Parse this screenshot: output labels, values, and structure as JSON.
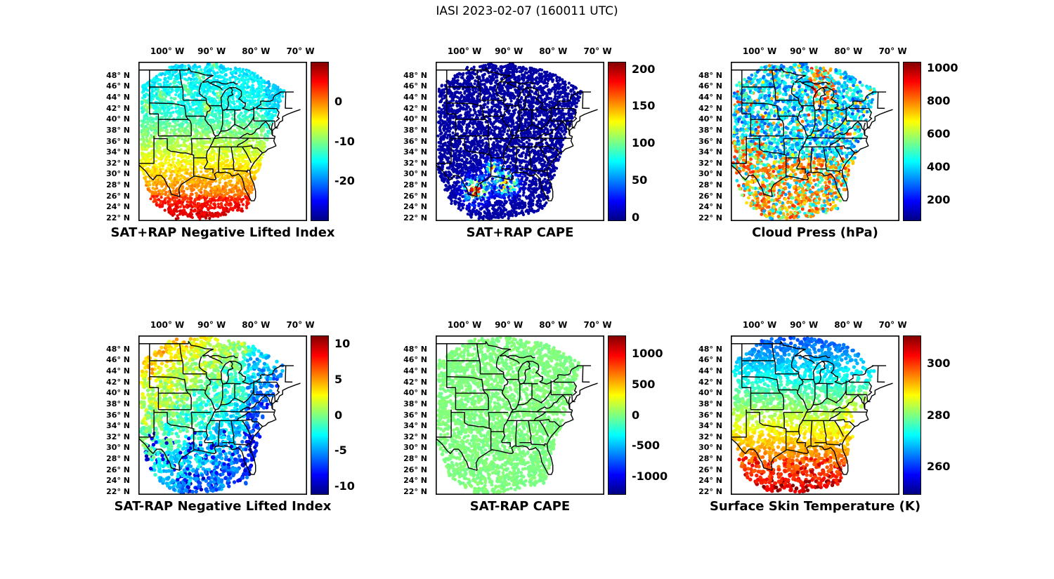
{
  "figure": {
    "title": "IASI 2023-02-07 (160011 UTC)",
    "instrument": "IASI",
    "date": "2023-02-07",
    "time_utc": "160011 UTC"
  },
  "map": {
    "lon_range": [
      -106.5,
      -68.5
    ],
    "lat_range": [
      21.5,
      50.5
    ],
    "lon_ticks": [
      {
        "value": -100,
        "label": "100° W"
      },
      {
        "value": -90,
        "label": "90° W"
      },
      {
        "value": -80,
        "label": "80° W"
      },
      {
        "value": -70,
        "label": "70° W"
      }
    ],
    "lat_ticks": [
      {
        "value": 48,
        "label": "48° N"
      },
      {
        "value": 46,
        "label": "46° N"
      },
      {
        "value": 44,
        "label": "44° N"
      },
      {
        "value": 42,
        "label": "42° N"
      },
      {
        "value": 40,
        "label": "40° N"
      },
      {
        "value": 38,
        "label": "38° N"
      },
      {
        "value": 36,
        "label": "36° N"
      },
      {
        "value": 34,
        "label": "34° N"
      },
      {
        "value": 32,
        "label": "32° N"
      },
      {
        "value": 30,
        "label": "30° N"
      },
      {
        "value": 28,
        "label": "28° N"
      },
      {
        "value": 26,
        "label": "26° N"
      },
      {
        "value": 24,
        "label": "24° N"
      },
      {
        "value": 22,
        "label": "22° N"
      }
    ]
  },
  "panels": [
    {
      "title": "SAT+RAP Negative Lifted Index",
      "field": "nli_plus",
      "row": 0,
      "col": 0,
      "colorbar": {
        "min": -30,
        "max": 10,
        "ticks": [
          {
            "value": 0,
            "label": "0"
          },
          {
            "value": -10,
            "label": "-10"
          },
          {
            "value": -20,
            "label": "-20"
          }
        ]
      },
      "style": {
        "num_points": 4000,
        "point_radius": 2.1
      }
    },
    {
      "title": "SAT+RAP CAPE",
      "field": "cape_plus",
      "row": 0,
      "col": 1,
      "colorbar": {
        "min": -5,
        "max": 210,
        "ticks": [
          {
            "value": 200,
            "label": "200"
          },
          {
            "value": 150,
            "label": "150"
          },
          {
            "value": 100,
            "label": "100"
          },
          {
            "value": 50,
            "label": "50"
          },
          {
            "value": 0,
            "label": "0"
          }
        ]
      },
      "style": {
        "num_points": 4000,
        "point_radius": 2.1
      }
    },
    {
      "title": "Cloud Press (hPa)",
      "field": "cloud_press",
      "row": 0,
      "col": 2,
      "colorbar": {
        "min": 70,
        "max": 1040,
        "ticks": [
          {
            "value": 1000,
            "label": "1000"
          },
          {
            "value": 800,
            "label": "800"
          },
          {
            "value": 600,
            "label": "600"
          },
          {
            "value": 400,
            "label": "400"
          },
          {
            "value": 200,
            "label": "200"
          }
        ]
      },
      "style": {
        "num_points": 2600,
        "point_radius": 2.4
      }
    },
    {
      "title": "SAT-RAP Negative Lifted Index",
      "field": "nli_diff",
      "row": 1,
      "col": 0,
      "colorbar": {
        "min": -11.2,
        "max": 11.2,
        "ticks": [
          {
            "value": 10,
            "label": "10"
          },
          {
            "value": 5,
            "label": "5"
          },
          {
            "value": 0,
            "label": "0"
          },
          {
            "value": -5,
            "label": "-5"
          },
          {
            "value": -10,
            "label": "-10"
          }
        ]
      },
      "style": {
        "num_points": 2100,
        "point_radius": 2.7
      }
    },
    {
      "title": "SAT-RAP CAPE",
      "field": "cape_diff",
      "row": 1,
      "col": 1,
      "colorbar": {
        "min": -1300,
        "max": 1300,
        "ticks": [
          {
            "value": 1000,
            "label": "1000"
          },
          {
            "value": 500,
            "label": "500"
          },
          {
            "value": 0,
            "label": "0"
          },
          {
            "value": -500,
            "label": "-500"
          },
          {
            "value": -1000,
            "label": "-1000"
          }
        ]
      },
      "style": {
        "num_points": 3000,
        "point_radius": 2.4
      }
    },
    {
      "title": "Surface Skin Temperature (K)",
      "field": "skin_temp",
      "row": 1,
      "col": 2,
      "colorbar": {
        "min": 249,
        "max": 311,
        "ticks": [
          {
            "value": 300,
            "label": "300"
          },
          {
            "value": 280,
            "label": "280"
          },
          {
            "value": 260,
            "label": "260"
          }
        ]
      },
      "style": {
        "num_points": 2100,
        "point_radius": 2.7
      }
    }
  ],
  "chart_data": [
    {
      "type": "scatter",
      "title": "SAT+RAP Negative Lifted Index",
      "colormap": "jet",
      "value_range": [
        -30,
        10
      ],
      "colorbar_ticks": [
        0,
        -10,
        -20
      ],
      "lon_range_deg": [
        -106.5,
        -68.5
      ],
      "lat_range_deg": [
        21.5,
        50.5
      ],
      "lon_tick_labels": [
        "100° W",
        "90° W",
        "80° W",
        "70° W"
      ],
      "lat_tick_labels": [
        "48° N",
        "46° N",
        "44° N",
        "42° N",
        "40° N",
        "38° N",
        "36° N",
        "34° N",
        "32° N",
        "30° N",
        "28° N",
        "26° N",
        "24° N",
        "22° N"
      ],
      "approx_field": {
        "lon_bands": [
          [
            -106.5,
            -97
          ],
          [
            -97,
            -88
          ],
          [
            -88,
            -79
          ],
          [
            -79,
            -68.5
          ]
        ],
        "lat_bands": [
          [
            44,
            50.5
          ],
          [
            38,
            44
          ],
          [
            31,
            38
          ],
          [
            21.5,
            31
          ]
        ],
        "values": [
          [
            -8,
            -12,
            -13,
            -15
          ],
          [
            -11,
            -13,
            -12,
            -14
          ],
          [
            -6,
            -9,
            -11,
            -13
          ],
          [
            0,
            1,
            -2,
            -8
          ]
        ]
      },
      "description": "Satellite swath over central/eastern US; cyan-blue north, yellow-green patches northwest, orange-red over Texas, Gulf coast and Florida."
    },
    {
      "type": "scatter",
      "title": "SAT+RAP CAPE",
      "colormap": "jet",
      "value_range": [
        -5,
        210
      ],
      "colorbar_ticks": [
        200,
        150,
        100,
        50,
        0
      ],
      "lon_range_deg": [
        -106.5,
        -68.5
      ],
      "lat_range_deg": [
        21.5,
        50.5
      ],
      "approx_field": {
        "lon_bands": [
          [
            -106.5,
            -97
          ],
          [
            -97,
            -88
          ],
          [
            -88,
            -79
          ],
          [
            -79,
            -68.5
          ]
        ],
        "lat_bands": [
          [
            44,
            50.5
          ],
          [
            38,
            44
          ],
          [
            31,
            38
          ],
          [
            21.5,
            31
          ]
        ],
        "values": [
          [
            2,
            2,
            2,
            2
          ],
          [
            2,
            2,
            2,
            2
          ],
          [
            5,
            5,
            3,
            2
          ],
          [
            60,
            80,
            20,
            3
          ]
        ]
      },
      "description": "Near-zero (dark blue) everywhere except high-CAPE red/orange clusters near the Texas and Louisiana Gulf coast."
    },
    {
      "type": "scatter",
      "title": "Cloud Press (hPa)",
      "colormap": "jet",
      "value_range": [
        70,
        1040
      ],
      "colorbar_ticks": [
        1000,
        800,
        600,
        400,
        200
      ],
      "lon_range_deg": [
        -106.5,
        -68.5
      ],
      "lat_range_deg": [
        21.5,
        50.5
      ],
      "approx_field": {
        "lon_bands": [
          [
            -106.5,
            -97
          ],
          [
            -97,
            -88
          ],
          [
            -88,
            -79
          ],
          [
            -79,
            -68.5
          ]
        ],
        "lat_bands": [
          [
            44,
            50.5
          ],
          [
            38,
            44
          ],
          [
            31,
            38
          ],
          [
            21.5,
            31
          ]
        ],
        "values": [
          [
            420,
            450,
            700,
            380
          ],
          [
            360,
            400,
            420,
            330
          ],
          [
            650,
            480,
            450,
            380
          ],
          [
            790,
            780,
            750,
            420
          ]
        ]
      },
      "description": "Blue/cyan (300-500 hPa) over the north, orange/red (700-900 hPa) over the south, southwest and near Lake Michigan."
    },
    {
      "type": "scatter",
      "title": "SAT-RAP Negative Lifted Index",
      "colormap": "jet",
      "value_range": [
        -11.2,
        11.2
      ],
      "colorbar_ticks": [
        10,
        5,
        0,
        -5,
        -10
      ],
      "lon_range_deg": [
        -106.5,
        -68.5
      ],
      "lat_range_deg": [
        21.5,
        50.5
      ],
      "approx_field": {
        "lon_bands": [
          [
            -106.5,
            -97
          ],
          [
            -97,
            -88
          ],
          [
            -88,
            -79
          ],
          [
            -79,
            -68.5
          ]
        ],
        "lat_bands": [
          [
            44,
            50.5
          ],
          [
            38,
            44
          ],
          [
            31,
            38
          ],
          [
            21.5,
            31
          ]
        ],
        "values": [
          [
            4,
            2,
            -2,
            -5
          ],
          [
            3,
            1,
            0,
            -2
          ],
          [
            0,
            0,
            -1,
            -3
          ],
          [
            -2,
            -3,
            -6,
            -5
          ]
        ]
      },
      "description": "Differences mostly near zero; yellow (+4) in the northwest, cyan/green elsewhere, scattered dark-blue (-8) dots over the south and southeast."
    },
    {
      "type": "scatter",
      "title": "SAT-RAP CAPE",
      "colormap": "jet",
      "value_range": [
        -1300,
        1300
      ],
      "colorbar_ticks": [
        1000,
        500,
        0,
        -500,
        -1000
      ],
      "lon_range_deg": [
        -106.5,
        -68.5
      ],
      "lat_range_deg": [
        21.5,
        50.5
      ],
      "approx_field": {
        "lon_bands": [
          [
            -106.5,
            -97
          ],
          [
            -97,
            -88
          ],
          [
            -88,
            -79
          ],
          [
            -79,
            -68.5
          ]
        ],
        "lat_bands": [
          [
            44,
            50.5
          ],
          [
            38,
            44
          ],
          [
            31,
            38
          ],
          [
            21.5,
            31
          ]
        ],
        "values": [
          [
            0,
            0,
            0,
            0
          ],
          [
            0,
            0,
            0,
            0
          ],
          [
            0,
            0,
            0,
            0
          ],
          [
            0,
            0,
            0,
            0
          ]
        ]
      },
      "description": "Uniform light-green field: CAPE difference approximately 0 J/kg across the entire swath."
    },
    {
      "type": "scatter",
      "title": "Surface Skin Temperature (K)",
      "colormap": "jet",
      "value_range": [
        249,
        311
      ],
      "colorbar_ticks": [
        300,
        280,
        260
      ],
      "lon_range_deg": [
        -106.5,
        -68.5
      ],
      "lat_range_deg": [
        21.5,
        50.5
      ],
      "approx_field": {
        "lon_bands": [
          [
            -106.5,
            -97
          ],
          [
            -97,
            -88
          ],
          [
            -88,
            -79
          ],
          [
            -79,
            -68.5
          ]
        ],
        "lat_bands": [
          [
            44,
            50.5
          ],
          [
            38,
            44
          ],
          [
            31,
            38
          ],
          [
            21.5,
            31
          ]
        ],
        "values": [
          [
            266,
            265,
            267,
            268
          ],
          [
            272,
            272,
            273,
            272
          ],
          [
            284,
            283,
            283,
            281
          ],
          [
            296,
            299,
            297,
            290
          ]
        ]
      },
      "description": "North-south temperature gradient: blue/cyan (~265 K) in the north through green (~280 K) to orange/red (~300 K) along the Gulf."
    }
  ]
}
